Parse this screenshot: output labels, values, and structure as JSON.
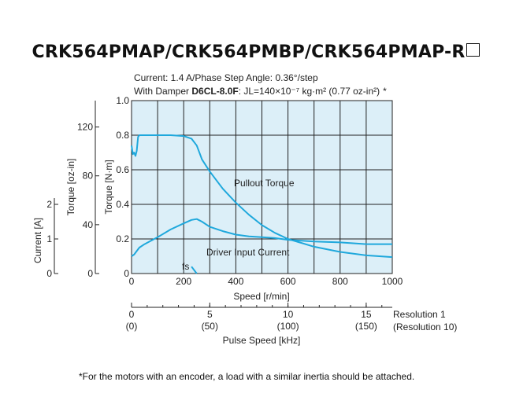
{
  "title": {
    "main": "CRK564PMAP/CRK564PMBP/CRK564PMAP-R",
    "box_glyph": "□"
  },
  "conditions": {
    "line1": "Current: 1.4 A/Phase  Step Angle: 0.36°/step",
    "line2_prefix": "With Damper ",
    "damper_model": "D6CL-8.0F",
    "line2_inertia": ": JL=140×10⁻⁷ kg·m² (0.77 oz-in²)",
    "asterisk": "*"
  },
  "footnote": "*For the motors with an encoder, a load with a similar inertia should be attached.",
  "colors": {
    "plot_bg": "#dcefF8",
    "curve": "#1fa8dc",
    "grid": "#222222"
  },
  "chart_data": {
    "type": "line",
    "x_axis": {
      "label": "Speed [r/min]",
      "range": [
        0,
        1000
      ],
      "ticks": [
        "0",
        "200",
        "400",
        "600",
        "800",
        "1000"
      ]
    },
    "y_axis_torque_nm": {
      "label": "Torque [N·m]",
      "range": [
        0,
        1.0
      ],
      "ticks": [
        "0",
        "0.2",
        "0.4",
        "0.6",
        "0.8",
        "1.0"
      ]
    },
    "y_axis_torque_ozin": {
      "label": "Torque [oz-in]",
      "ticks": [
        "0",
        "40",
        "80",
        "120"
      ]
    },
    "y_axis_current": {
      "label": "Current [A]",
      "ticks": [
        "0",
        "1",
        "2"
      ]
    },
    "pulse_axis": {
      "label": "Pulse Speed [kHz]",
      "resolution1_label": "Resolution 1",
      "resolution10_label": "(Resolution 10)",
      "ticks_res1": [
        "0",
        "5",
        "10",
        "15"
      ],
      "ticks_res10": [
        "(0)",
        "(50)",
        "(100)",
        "(150)"
      ]
    },
    "series": [
      {
        "name": "Pullout Torque",
        "x": [
          0,
          5,
          10,
          15,
          20,
          25,
          30,
          35,
          50,
          100,
          150,
          200,
          230,
          250,
          270,
          300,
          350,
          400,
          450,
          500,
          550,
          600,
          700,
          800,
          900,
          1000
        ],
        "y": [
          0.74,
          0.69,
          0.7,
          0.68,
          0.71,
          0.79,
          0.8,
          0.8,
          0.8,
          0.8,
          0.8,
          0.795,
          0.78,
          0.74,
          0.66,
          0.59,
          0.49,
          0.41,
          0.34,
          0.28,
          0.235,
          0.2,
          0.155,
          0.125,
          0.105,
          0.095
        ]
      },
      {
        "name": "Driver Input Current",
        "x": [
          0,
          10,
          20,
          30,
          50,
          100,
          150,
          200,
          230,
          250,
          270,
          300,
          350,
          400,
          450,
          500,
          550,
          600,
          700,
          800,
          900,
          1000
        ],
        "y": [
          0.1,
          0.11,
          0.13,
          0.15,
          0.17,
          0.21,
          0.255,
          0.29,
          0.31,
          0.315,
          0.3,
          0.27,
          0.245,
          0.225,
          0.215,
          0.21,
          0.205,
          0.195,
          0.185,
          0.18,
          0.17,
          0.17
        ]
      }
    ],
    "annotations": {
      "fs": "fs",
      "fs_x": [
        230,
        250
      ],
      "fs_y": [
        0.04,
        0.0
      ]
    }
  }
}
